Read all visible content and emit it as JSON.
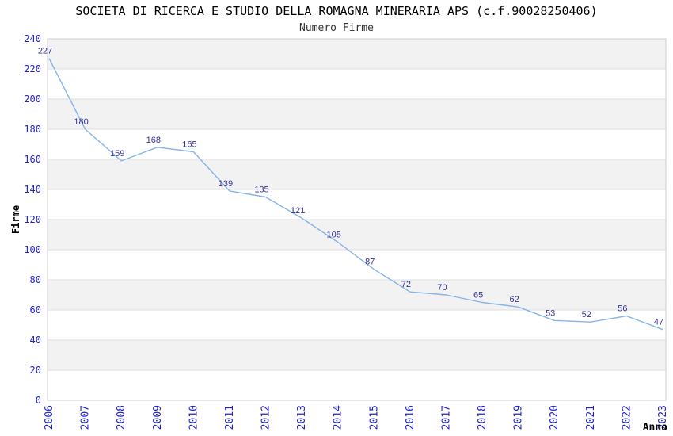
{
  "chart_data": {
    "type": "line",
    "title": "SOCIETA DI RICERCA E STUDIO DELLA ROMAGNA MINERARIA APS (c.f.90028250406)",
    "subtitle": "Numero Firme",
    "xlabel": "Anno",
    "ylabel": "Firme",
    "categories": [
      "2006",
      "2007",
      "2008",
      "2009",
      "2010",
      "2011",
      "2012",
      "2013",
      "2014",
      "2015",
      "2016",
      "2017",
      "2018",
      "2019",
      "2020",
      "2021",
      "2022",
      "2023"
    ],
    "series": [
      {
        "name": "Numero Firme",
        "values": [
          227,
          180,
          159,
          168,
          165,
          139,
          135,
          121,
          105,
          87,
          72,
          70,
          65,
          62,
          53,
          52,
          56,
          47
        ]
      }
    ],
    "ylim": [
      0,
      240
    ],
    "ytick_step": 20,
    "grid": "horizontal alternating bands every 20 units, gray band at top (220-240)",
    "legend": false,
    "data_labels": true,
    "x_tick_rotation": -90
  },
  "style": {
    "line_color": "#86B4E6",
    "data_label_color": "#333399",
    "tick_label_color": "#2222CC",
    "band_color": "#F2F2F2",
    "gridline_color": "#DDDDDD",
    "plot_border_color": "#CCCCCC",
    "title_color": "#000000",
    "subtitle_color": "#333333",
    "axis_title_color": "#000000",
    "background_color": "#FFFFFF"
  }
}
